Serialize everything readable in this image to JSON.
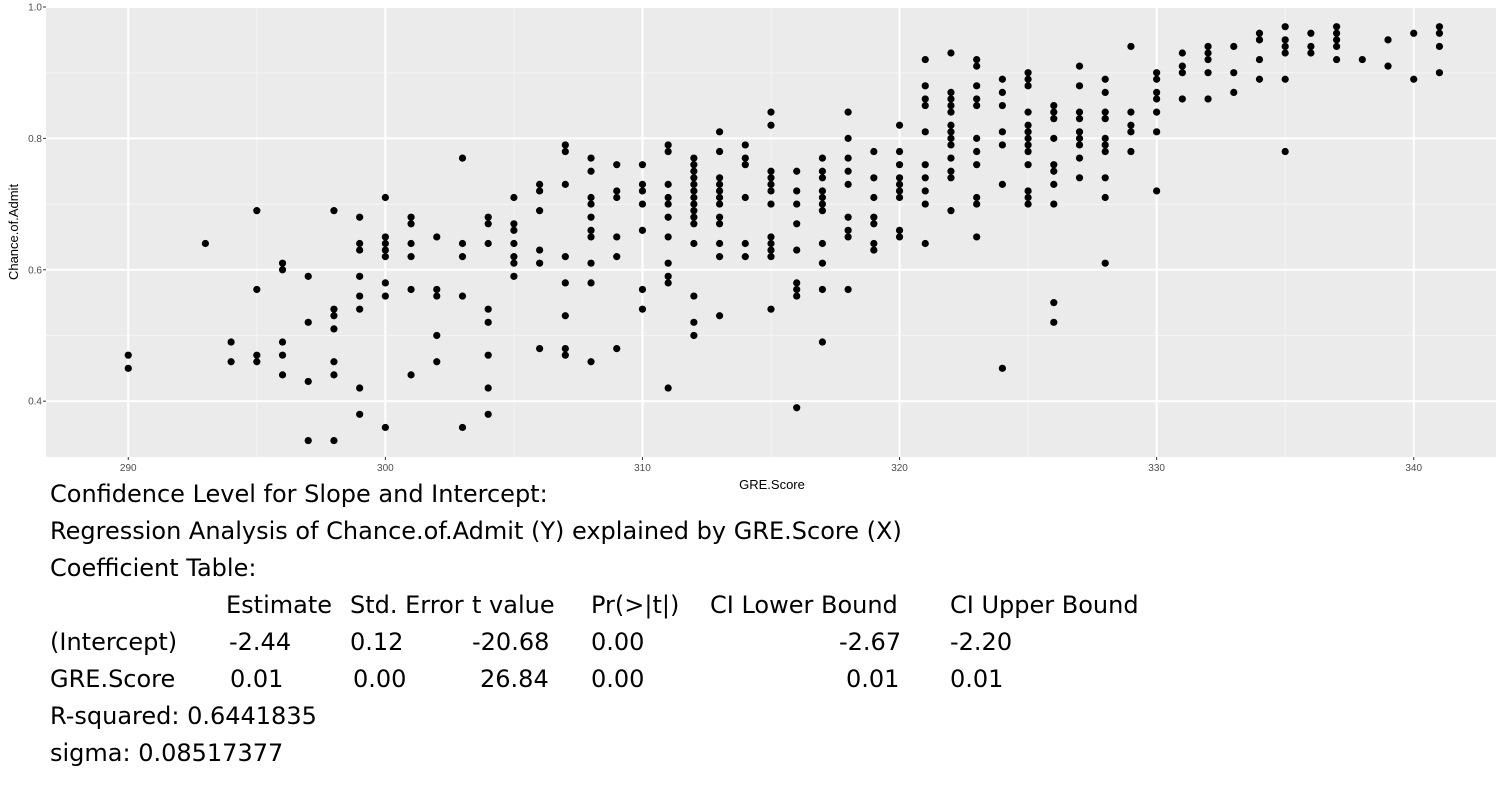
{
  "chart_data": {
    "type": "scatter",
    "title": "",
    "xlabel": "GRE.Score",
    "ylabel": "Chance.of.Admit",
    "xlim": [
      286.8,
      343.2
    ],
    "ylim": [
      0.315,
      1.0
    ],
    "x_ticks": [
      "290",
      "300",
      "310",
      "320",
      "330",
      "340"
    ],
    "y_ticks": [
      "0.4",
      "0.6",
      "0.8",
      "1.0"
    ],
    "grid": true,
    "background": "#ebebeb",
    "point_color": "#000000",
    "points": [
      [
        290,
        0.47
      ],
      [
        290,
        0.45
      ],
      [
        293,
        0.64
      ],
      [
        294,
        0.49
      ],
      [
        294,
        0.46
      ],
      [
        295,
        0.69
      ],
      [
        295,
        0.57
      ],
      [
        295,
        0.47
      ],
      [
        295,
        0.46
      ],
      [
        296,
        0.61
      ],
      [
        296,
        0.6
      ],
      [
        296,
        0.49
      ],
      [
        296,
        0.47
      ],
      [
        296,
        0.44
      ],
      [
        297,
        0.59
      ],
      [
        297,
        0.52
      ],
      [
        297,
        0.43
      ],
      [
        297,
        0.34
      ],
      [
        298,
        0.69
      ],
      [
        298,
        0.54
      ],
      [
        298,
        0.53
      ],
      [
        298,
        0.51
      ],
      [
        298,
        0.46
      ],
      [
        298,
        0.44
      ],
      [
        298,
        0.34
      ],
      [
        299,
        0.68
      ],
      [
        299,
        0.64
      ],
      [
        299,
        0.63
      ],
      [
        299,
        0.59
      ],
      [
        299,
        0.56
      ],
      [
        299,
        0.54
      ],
      [
        299,
        0.42
      ],
      [
        299,
        0.38
      ],
      [
        300,
        0.71
      ],
      [
        300,
        0.65
      ],
      [
        300,
        0.64
      ],
      [
        300,
        0.63
      ],
      [
        300,
        0.62
      ],
      [
        300,
        0.58
      ],
      [
        300,
        0.56
      ],
      [
        300,
        0.36
      ],
      [
        301,
        0.68
      ],
      [
        301,
        0.67
      ],
      [
        301,
        0.64
      ],
      [
        301,
        0.62
      ],
      [
        301,
        0.57
      ],
      [
        301,
        0.44
      ],
      [
        302,
        0.65
      ],
      [
        302,
        0.57
      ],
      [
        302,
        0.56
      ],
      [
        302,
        0.5
      ],
      [
        302,
        0.46
      ],
      [
        303,
        0.77
      ],
      [
        303,
        0.64
      ],
      [
        303,
        0.62
      ],
      [
        303,
        0.56
      ],
      [
        303,
        0.36
      ],
      [
        304,
        0.68
      ],
      [
        304,
        0.67
      ],
      [
        304,
        0.64
      ],
      [
        304,
        0.54
      ],
      [
        304,
        0.52
      ],
      [
        304,
        0.47
      ],
      [
        304,
        0.42
      ],
      [
        304,
        0.38
      ],
      [
        305,
        0.71
      ],
      [
        305,
        0.67
      ],
      [
        305,
        0.66
      ],
      [
        305,
        0.64
      ],
      [
        305,
        0.62
      ],
      [
        305,
        0.61
      ],
      [
        305,
        0.59
      ],
      [
        306,
        0.73
      ],
      [
        306,
        0.72
      ],
      [
        306,
        0.69
      ],
      [
        306,
        0.63
      ],
      [
        306,
        0.61
      ],
      [
        306,
        0.48
      ],
      [
        307,
        0.79
      ],
      [
        307,
        0.78
      ],
      [
        307,
        0.73
      ],
      [
        307,
        0.62
      ],
      [
        307,
        0.58
      ],
      [
        307,
        0.53
      ],
      [
        307,
        0.48
      ],
      [
        307,
        0.47
      ],
      [
        308,
        0.77
      ],
      [
        308,
        0.75
      ],
      [
        308,
        0.71
      ],
      [
        308,
        0.7
      ],
      [
        308,
        0.68
      ],
      [
        308,
        0.66
      ],
      [
        308,
        0.65
      ],
      [
        308,
        0.61
      ],
      [
        308,
        0.58
      ],
      [
        308,
        0.46
      ],
      [
        309,
        0.76
      ],
      [
        309,
        0.72
      ],
      [
        309,
        0.71
      ],
      [
        309,
        0.65
      ],
      [
        309,
        0.62
      ],
      [
        309,
        0.48
      ],
      [
        310,
        0.76
      ],
      [
        310,
        0.73
      ],
      [
        310,
        0.72
      ],
      [
        310,
        0.7
      ],
      [
        310,
        0.66
      ],
      [
        310,
        0.57
      ],
      [
        310,
        0.54
      ],
      [
        311,
        0.79
      ],
      [
        311,
        0.78
      ],
      [
        311,
        0.73
      ],
      [
        311,
        0.71
      ],
      [
        311,
        0.7
      ],
      [
        311,
        0.68
      ],
      [
        311,
        0.65
      ],
      [
        311,
        0.61
      ],
      [
        311,
        0.59
      ],
      [
        311,
        0.58
      ],
      [
        311,
        0.42
      ],
      [
        312,
        0.77
      ],
      [
        312,
        0.76
      ],
      [
        312,
        0.75
      ],
      [
        312,
        0.74
      ],
      [
        312,
        0.73
      ],
      [
        312,
        0.72
      ],
      [
        312,
        0.71
      ],
      [
        312,
        0.7
      ],
      [
        312,
        0.69
      ],
      [
        312,
        0.68
      ],
      [
        312,
        0.67
      ],
      [
        312,
        0.64
      ],
      [
        312,
        0.56
      ],
      [
        312,
        0.52
      ],
      [
        312,
        0.5
      ],
      [
        313,
        0.81
      ],
      [
        313,
        0.78
      ],
      [
        313,
        0.74
      ],
      [
        313,
        0.73
      ],
      [
        313,
        0.72
      ],
      [
        313,
        0.71
      ],
      [
        313,
        0.7
      ],
      [
        313,
        0.68
      ],
      [
        313,
        0.67
      ],
      [
        313,
        0.64
      ],
      [
        313,
        0.62
      ],
      [
        313,
        0.53
      ],
      [
        314,
        0.79
      ],
      [
        314,
        0.77
      ],
      [
        314,
        0.76
      ],
      [
        314,
        0.71
      ],
      [
        314,
        0.64
      ],
      [
        314,
        0.62
      ],
      [
        315,
        0.84
      ],
      [
        315,
        0.82
      ],
      [
        315,
        0.75
      ],
      [
        315,
        0.74
      ],
      [
        315,
        0.73
      ],
      [
        315,
        0.72
      ],
      [
        315,
        0.7
      ],
      [
        315,
        0.65
      ],
      [
        315,
        0.64
      ],
      [
        315,
        0.63
      ],
      [
        315,
        0.62
      ],
      [
        315,
        0.54
      ],
      [
        316,
        0.75
      ],
      [
        316,
        0.72
      ],
      [
        316,
        0.7
      ],
      [
        316,
        0.67
      ],
      [
        316,
        0.63
      ],
      [
        316,
        0.58
      ],
      [
        316,
        0.57
      ],
      [
        316,
        0.56
      ],
      [
        316,
        0.39
      ],
      [
        317,
        0.77
      ],
      [
        317,
        0.75
      ],
      [
        317,
        0.74
      ],
      [
        317,
        0.72
      ],
      [
        317,
        0.71
      ],
      [
        317,
        0.7
      ],
      [
        317,
        0.69
      ],
      [
        317,
        0.64
      ],
      [
        317,
        0.61
      ],
      [
        317,
        0.57
      ],
      [
        317,
        0.49
      ],
      [
        318,
        0.84
      ],
      [
        318,
        0.8
      ],
      [
        318,
        0.77
      ],
      [
        318,
        0.75
      ],
      [
        318,
        0.73
      ],
      [
        318,
        0.68
      ],
      [
        318,
        0.66
      ],
      [
        318,
        0.65
      ],
      [
        318,
        0.57
      ],
      [
        319,
        0.78
      ],
      [
        319,
        0.74
      ],
      [
        319,
        0.71
      ],
      [
        319,
        0.68
      ],
      [
        319,
        0.67
      ],
      [
        319,
        0.64
      ],
      [
        319,
        0.63
      ],
      [
        320,
        0.82
      ],
      [
        320,
        0.78
      ],
      [
        320,
        0.76
      ],
      [
        320,
        0.74
      ],
      [
        320,
        0.73
      ],
      [
        320,
        0.72
      ],
      [
        320,
        0.71
      ],
      [
        320,
        0.66
      ],
      [
        320,
        0.65
      ],
      [
        321,
        0.92
      ],
      [
        321,
        0.88
      ],
      [
        321,
        0.86
      ],
      [
        321,
        0.85
      ],
      [
        321,
        0.81
      ],
      [
        321,
        0.76
      ],
      [
        321,
        0.74
      ],
      [
        321,
        0.72
      ],
      [
        321,
        0.7
      ],
      [
        321,
        0.64
      ],
      [
        322,
        0.93
      ],
      [
        322,
        0.87
      ],
      [
        322,
        0.86
      ],
      [
        322,
        0.85
      ],
      [
        322,
        0.84
      ],
      [
        322,
        0.82
      ],
      [
        322,
        0.81
      ],
      [
        322,
        0.8
      ],
      [
        322,
        0.79
      ],
      [
        322,
        0.77
      ],
      [
        322,
        0.75
      ],
      [
        322,
        0.74
      ],
      [
        322,
        0.69
      ],
      [
        323,
        0.92
      ],
      [
        323,
        0.91
      ],
      [
        323,
        0.88
      ],
      [
        323,
        0.86
      ],
      [
        323,
        0.85
      ],
      [
        323,
        0.8
      ],
      [
        323,
        0.78
      ],
      [
        323,
        0.76
      ],
      [
        323,
        0.71
      ],
      [
        323,
        0.7
      ],
      [
        323,
        0.65
      ],
      [
        324,
        0.89
      ],
      [
        324,
        0.87
      ],
      [
        324,
        0.85
      ],
      [
        324,
        0.81
      ],
      [
        324,
        0.79
      ],
      [
        324,
        0.73
      ],
      [
        324,
        0.45
      ],
      [
        325,
        0.9
      ],
      [
        325,
        0.89
      ],
      [
        325,
        0.88
      ],
      [
        325,
        0.84
      ],
      [
        325,
        0.82
      ],
      [
        325,
        0.81
      ],
      [
        325,
        0.8
      ],
      [
        325,
        0.79
      ],
      [
        325,
        0.78
      ],
      [
        325,
        0.76
      ],
      [
        325,
        0.72
      ],
      [
        325,
        0.71
      ],
      [
        325,
        0.7
      ],
      [
        326,
        0.85
      ],
      [
        326,
        0.84
      ],
      [
        326,
        0.83
      ],
      [
        326,
        0.8
      ],
      [
        326,
        0.76
      ],
      [
        326,
        0.75
      ],
      [
        326,
        0.73
      ],
      [
        326,
        0.7
      ],
      [
        326,
        0.55
      ],
      [
        326,
        0.52
      ],
      [
        327,
        0.91
      ],
      [
        327,
        0.88
      ],
      [
        327,
        0.84
      ],
      [
        327,
        0.83
      ],
      [
        327,
        0.81
      ],
      [
        327,
        0.8
      ],
      [
        327,
        0.79
      ],
      [
        327,
        0.77
      ],
      [
        327,
        0.74
      ],
      [
        328,
        0.89
      ],
      [
        328,
        0.87
      ],
      [
        328,
        0.84
      ],
      [
        328,
        0.83
      ],
      [
        328,
        0.8
      ],
      [
        328,
        0.79
      ],
      [
        328,
        0.78
      ],
      [
        328,
        0.74
      ],
      [
        328,
        0.71
      ],
      [
        328,
        0.61
      ],
      [
        329,
        0.94
      ],
      [
        329,
        0.84
      ],
      [
        329,
        0.82
      ],
      [
        329,
        0.81
      ],
      [
        329,
        0.78
      ],
      [
        330,
        0.9
      ],
      [
        330,
        0.89
      ],
      [
        330,
        0.87
      ],
      [
        330,
        0.86
      ],
      [
        330,
        0.84
      ],
      [
        330,
        0.81
      ],
      [
        330,
        0.72
      ],
      [
        331,
        0.93
      ],
      [
        331,
        0.91
      ],
      [
        331,
        0.9
      ],
      [
        331,
        0.86
      ],
      [
        332,
        0.94
      ],
      [
        332,
        0.93
      ],
      [
        332,
        0.92
      ],
      [
        332,
        0.9
      ],
      [
        332,
        0.86
      ],
      [
        333,
        0.94
      ],
      [
        333,
        0.9
      ],
      [
        333,
        0.87
      ],
      [
        334,
        0.96
      ],
      [
        334,
        0.95
      ],
      [
        334,
        0.92
      ],
      [
        334,
        0.89
      ],
      [
        335,
        0.97
      ],
      [
        335,
        0.95
      ],
      [
        335,
        0.94
      ],
      [
        335,
        0.93
      ],
      [
        335,
        0.89
      ],
      [
        335,
        0.78
      ],
      [
        336,
        0.96
      ],
      [
        336,
        0.94
      ],
      [
        336,
        0.93
      ],
      [
        337,
        0.97
      ],
      [
        337,
        0.96
      ],
      [
        337,
        0.95
      ],
      [
        337,
        0.94
      ],
      [
        337,
        0.92
      ],
      [
        338,
        0.92
      ],
      [
        339,
        0.95
      ],
      [
        339,
        0.91
      ],
      [
        340,
        0.96
      ],
      [
        340,
        0.89
      ],
      [
        341,
        0.97
      ],
      [
        341,
        0.96
      ],
      [
        341,
        0.94
      ],
      [
        341,
        0.9
      ]
    ]
  },
  "report": {
    "line1": "Confidence Level for Slope and Intercept:",
    "line2": "Regression Analysis of Chance.of.Admit (Y) explained by GRE.Score (X)",
    "line3": "Coefficient Table:",
    "table": {
      "headers": [
        "Estimate",
        "Std. Error",
        "t value",
        "Pr(>|t|)",
        "CI Lower Bound",
        "CI Upper Bound"
      ],
      "rows": [
        {
          "label": "(Intercept)",
          "estimate": "-2.44",
          "std_error": "0.12",
          "t_value": "-20.68",
          "p_value": "0.00",
          "ci_lower": "-2.67",
          "ci_upper": "-2.20"
        },
        {
          "label": "GRE.Score",
          "estimate": "0.01",
          "std_error": "0.00",
          "t_value": "26.84",
          "p_value": "0.00",
          "ci_lower": "0.01",
          "ci_upper": "0.01"
        }
      ]
    },
    "r_squared": "R-squared:  0.6441835",
    "sigma": "sigma:  0.08517377"
  }
}
